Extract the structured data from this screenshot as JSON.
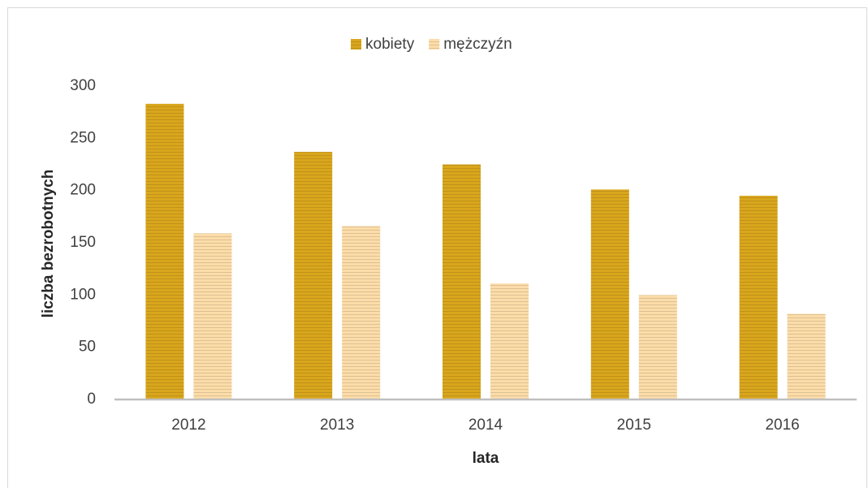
{
  "chart_data": {
    "type": "bar",
    "x_label": "lata",
    "y_label": "liczba bezrobotnych",
    "categories": [
      "2012",
      "2013",
      "2014",
      "2015",
      "2016"
    ],
    "series": [
      {
        "name": "kobiety",
        "color": "#d9a61c",
        "values": [
          283,
          237,
          225,
          201,
          195
        ]
      },
      {
        "name": "mężczyźn",
        "color": "#fcdca8",
        "values": [
          159,
          166,
          111,
          100,
          82
        ]
      }
    ],
    "ylim": [
      0,
      300
    ],
    "yticks": [
      0,
      50,
      100,
      150,
      200,
      250,
      300
    ],
    "grid": false,
    "legend": "top"
  }
}
